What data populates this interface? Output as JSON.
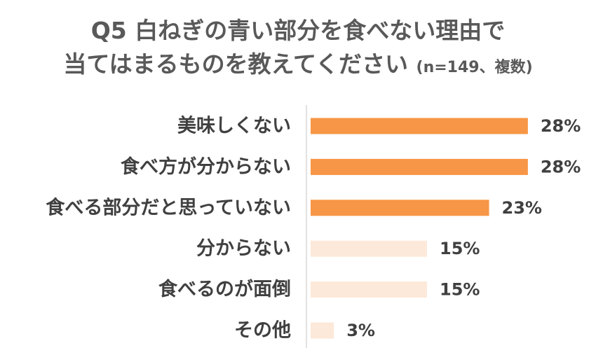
{
  "chart_data": {
    "type": "bar",
    "orientation": "horizontal",
    "title_line1": "Q5 白ねぎの青い部分を食べない理由で",
    "title_line2": "当てはまるものを教えてください",
    "title_note": "(n=149、複数)",
    "categories": [
      "美味しくない",
      "食べ方が分からない",
      "食べる部分だと思っていない",
      "分からない",
      "食べるのが面倒",
      "その他"
    ],
    "values": [
      28,
      28,
      23,
      15,
      15,
      3
    ],
    "value_labels": [
      "28%",
      "28%",
      "23%",
      "15%",
      "15%",
      "3%"
    ],
    "unit": "%",
    "xlim": [
      0,
      30
    ],
    "grid": false,
    "legend": "none",
    "colors": {
      "highlight": "#F79646",
      "muted": "#FDE9D9",
      "axis": "#D9D9D9"
    },
    "highlight": [
      true,
      true,
      true,
      false,
      false,
      false
    ]
  }
}
